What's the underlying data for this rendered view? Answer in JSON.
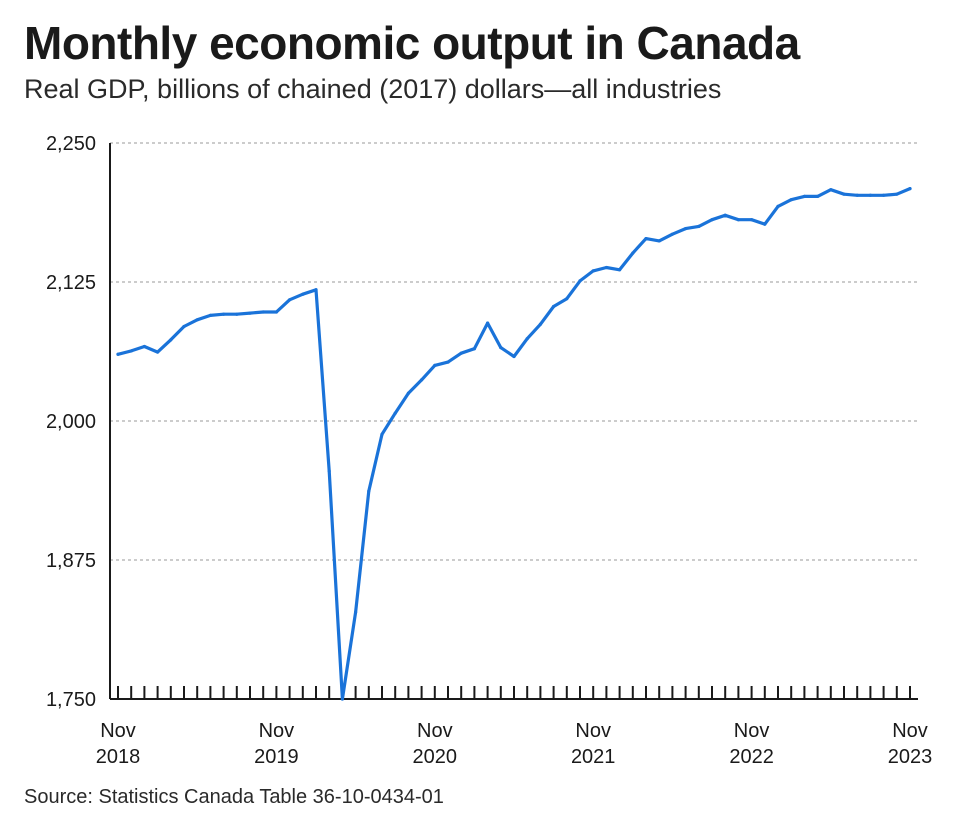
{
  "header": {
    "title": "Monthly economic output in Canada",
    "subtitle": "Real GDP, billions of chained (2017) dollars—all industries"
  },
  "footer": {
    "source": "Source: Statistics Canada Table 36-10-0434-01"
  },
  "colors": {
    "line": "#1a73d9",
    "grid": "#9a9a9a",
    "axis": "#1a1a1a"
  },
  "chart_data": {
    "type": "line",
    "title": "Monthly economic output in Canada",
    "subtitle": "Real GDP, billions of chained (2017) dollars—all industries",
    "xlabel": "",
    "ylabel": "",
    "ylim": [
      1750,
      2250
    ],
    "yticks": [
      1750,
      1875,
      2000,
      2125,
      2250
    ],
    "ytick_labels": [
      "1,750",
      "1,875",
      "2,000",
      "2,125",
      "2,250"
    ],
    "grid": "horizontal dashed",
    "legend": "none",
    "xrange": [
      "2018-11",
      "2023-11"
    ],
    "xtick_labels": [
      {
        "month": "Nov",
        "year": "2018",
        "date": "2018-11"
      },
      {
        "month": "Nov",
        "year": "2019",
        "date": "2019-11"
      },
      {
        "month": "Nov",
        "year": "2020",
        "date": "2020-11"
      },
      {
        "month": "Nov",
        "year": "2021",
        "date": "2021-11"
      },
      {
        "month": "Nov",
        "year": "2022",
        "date": "2022-11"
      },
      {
        "month": "Nov",
        "year": "2023",
        "date": "2023-11"
      }
    ],
    "series": [
      {
        "x": [
          "2018-11",
          "2018-12",
          "2019-01",
          "2019-02",
          "2019-03",
          "2019-04",
          "2019-05",
          "2019-06",
          "2019-07",
          "2019-08",
          "2019-09",
          "2019-10",
          "2019-11",
          "2019-12",
          "2020-01",
          "2020-02",
          "2020-03",
          "2020-04",
          "2020-05",
          "2020-06",
          "2020-07",
          "2020-08",
          "2020-09",
          "2020-10",
          "2020-11",
          "2020-12",
          "2021-01",
          "2021-02",
          "2021-03",
          "2021-04",
          "2021-05",
          "2021-06",
          "2021-07",
          "2021-08",
          "2021-09",
          "2021-10",
          "2021-11",
          "2021-12",
          "2022-01",
          "2022-02",
          "2022-03",
          "2022-04",
          "2022-05",
          "2022-06",
          "2022-07",
          "2022-08",
          "2022-09",
          "2022-10",
          "2022-11",
          "2022-12",
          "2023-01",
          "2023-02",
          "2023-03",
          "2023-04",
          "2023-05",
          "2023-06",
          "2023-07",
          "2023-08",
          "2023-09",
          "2023-10",
          "2023-11"
        ],
        "values": [
          2060,
          2063,
          2067,
          2062,
          2073,
          2085,
          2091,
          2095,
          2096,
          2096,
          2097,
          2098,
          2098,
          2109,
          2114,
          2118,
          1955,
          1750,
          1828,
          1937,
          1988,
          2007,
          2025,
          2037,
          2050,
          2053,
          2061,
          2065,
          2088,
          2066,
          2058,
          2074,
          2087,
          2103,
          2110,
          2126,
          2135,
          2138,
          2136,
          2151,
          2164,
          2162,
          2168,
          2173,
          2175,
          2181,
          2185,
          2181,
          2181,
          2177,
          2193,
          2199,
          2202,
          2202,
          2208,
          2204,
          2203,
          2203,
          2203,
          2204,
          2209
        ]
      }
    ]
  }
}
